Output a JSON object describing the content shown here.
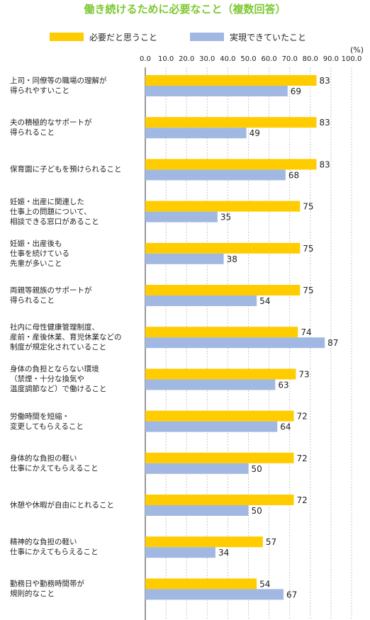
{
  "chart_data": {
    "type": "bar",
    "orientation": "horizontal",
    "title": "働き続けるために必要なこと（複数回答）",
    "unit": "(%)",
    "xlim": [
      0,
      100
    ],
    "ticks": [
      "0.0",
      "10.0",
      "20.0",
      "30.0",
      "40.0",
      "50.0",
      "60.0",
      "70.0",
      "80.0",
      "90.0",
      "100.0"
    ],
    "legend_position": "top",
    "categories": [
      "上司・同僚等の職場の理解が\n得られやすいこと",
      "夫の積極的なサポートが\n得られること",
      "保育園に子どもを預けられること",
      "妊娠・出産に関連した\n仕事上の問題について、\n相談できる窓口があること",
      "妊娠・出産後も\n仕事を続けている\n先輩が多いこと",
      "両親等親族のサポートが\n得られること",
      "社内に母性健康管理制度、\n産前・産後休業、育児休業などの\n制度が規定化されていること",
      "身体の負担とならない環境\n（禁煙・十分な換気や\n温度調節など）で働けること",
      "労働時間を短縮・\n変更してもらえること",
      "身体的な負担の軽い\n仕事にかえてもらえること",
      "休憩や休暇が自由にとれること",
      "精神的な負担の軽い\n仕事にかえてもらえること",
      "勤務日や勤務時間帯が\n規則的なこと"
    ],
    "series": [
      {
        "name": "必要だと思うこと",
        "color": "#ffcc00",
        "values": [
          83,
          83,
          83,
          75,
          75,
          75,
          74,
          73,
          72,
          72,
          72,
          57,
          54
        ]
      },
      {
        "name": "実現できていたこと",
        "color": "#a1b8e3",
        "values": [
          69,
          49,
          68,
          35,
          38,
          54,
          87,
          63,
          64,
          50,
          50,
          34,
          67
        ]
      }
    ],
    "grid": true
  }
}
